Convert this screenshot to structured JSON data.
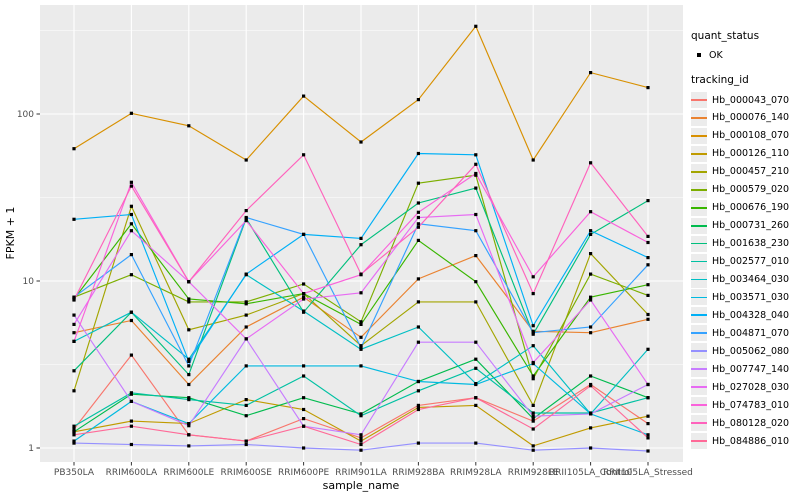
{
  "figure": {
    "bg": "#FFFFFF",
    "panel_bg": "#EBEBEB",
    "grid_color": "#FFFFFF",
    "tick_color": "#333333",
    "tick_label_color": "#4D4D4D",
    "point_color": "#000000"
  },
  "chart_data": {
    "type": "line",
    "title": "",
    "xlabel": "sample_name",
    "ylabel": "FPKM + 1",
    "y_scale": "log10",
    "y_ticks": [
      1,
      10,
      100
    ],
    "y_minor_ticks": [
      3.162,
      31.62,
      316.2
    ],
    "ylim": [
      0.74,
      450
    ],
    "grid": true,
    "legend_position": "right",
    "point_shape": "filled-square",
    "categories": [
      "PB350LA",
      "RRIM600LA",
      "RRIM600LE",
      "RRIM600SE",
      "RRIM600PE",
      "RRIM901LA",
      "RRIM928BA",
      "RRIM928LA",
      "RRIM928LE",
      "RRII105LA_Control",
      "RRII105LA_Stressed"
    ],
    "series": [
      {
        "name": "Hb_000043_070",
        "color": "#F8766D",
        "values": [
          1.3,
          3.6,
          1.2,
          1.1,
          1.5,
          1.15,
          1.8,
          2.0,
          1.45,
          2.4,
          1.4
        ]
      },
      {
        "name": "Hb_000076_140",
        "color": "#EA8331",
        "values": [
          4.9,
          5.8,
          2.4,
          5.3,
          8.0,
          4.6,
          10.3,
          14.2,
          5.0,
          4.9,
          5.9
        ]
      },
      {
        "name": "Hb_000108_070",
        "color": "#D89000",
        "values": [
          62,
          101,
          85,
          53,
          128,
          68,
          122,
          335,
          53,
          177,
          144
        ]
      },
      {
        "name": "Hb_000126_110",
        "color": "#C09B00",
        "values": [
          1.25,
          1.45,
          1.4,
          1.95,
          1.7,
          1.1,
          1.75,
          1.8,
          1.03,
          1.32,
          1.55
        ]
      },
      {
        "name": "Hb_000457_210",
        "color": "#A3A500",
        "values": [
          2.2,
          28,
          5.1,
          6.25,
          8.4,
          4.1,
          7.5,
          7.5,
          1.8,
          14.6,
          6.3
        ]
      },
      {
        "name": "Hb_000579_020",
        "color": "#7CAE00",
        "values": [
          8.0,
          10.9,
          7.5,
          7.5,
          9.6,
          5.7,
          38.5,
          43,
          2.6,
          11,
          8.2
        ]
      },
      {
        "name": "Hb_000676_190",
        "color": "#39B600",
        "values": [
          7.8,
          22,
          7.8,
          7.3,
          8.4,
          5.5,
          17.5,
          9.9,
          2.7,
          8.0,
          9.5
        ]
      },
      {
        "name": "Hb_000731_260",
        "color": "#00BB4E",
        "values": [
          1.25,
          2.1,
          2.0,
          1.56,
          2.0,
          1.6,
          2.5,
          3.4,
          1.5,
          2.7,
          2.0
        ]
      },
      {
        "name": "Hb_001638_230",
        "color": "#00BF7D",
        "values": [
          2.9,
          6.5,
          2.75,
          23.7,
          6.5,
          16.5,
          29.3,
          36,
          4.8,
          19,
          30.3
        ]
      },
      {
        "name": "Hb_002577_010",
        "color": "#00C1A3",
        "values": [
          1.35,
          2.14,
          1.95,
          1.8,
          2.7,
          1.56,
          2.2,
          3.0,
          1.62,
          1.62,
          2.0
        ]
      },
      {
        "name": "Hb_003464_030",
        "color": "#00BFC4",
        "values": [
          4.35,
          6.5,
          3.4,
          10.9,
          6.6,
          3.9,
          5.3,
          2.43,
          4.1,
          1.6,
          3.9
        ]
      },
      {
        "name": "Hb_003571_030",
        "color": "#00BAE0",
        "values": [
          1.1,
          1.9,
          1.4,
          3.1,
          3.1,
          3.1,
          2.5,
          2.4,
          3.2,
          1.6,
          1.2
        ]
      },
      {
        "name": "Hb_004328_040",
        "color": "#00B0F6",
        "values": [
          23.4,
          25,
          3.3,
          11,
          19,
          18,
          58,
          57,
          5.4,
          20,
          13.8
        ]
      },
      {
        "name": "Hb_004871_070",
        "color": "#35A2FF",
        "values": [
          8.0,
          14.4,
          3.1,
          24,
          19,
          4.0,
          22,
          20,
          4.9,
          5.3,
          12.5
        ]
      },
      {
        "name": "Hb_005062_080",
        "color": "#9590FF",
        "values": [
          1.07,
          1.05,
          1.03,
          1.05,
          1.0,
          0.97,
          1.07,
          1.07,
          0.97,
          1.0,
          0.96
        ]
      },
      {
        "name": "Hb_007747_140",
        "color": "#C77CFF",
        "values": [
          6.25,
          1.9,
          1.36,
          4.5,
          1.35,
          1.2,
          4.3,
          4.3,
          1.55,
          1.6,
          2.4
        ]
      },
      {
        "name": "Hb_027028_030",
        "color": "#E76BF3",
        "values": [
          5.5,
          20,
          9.9,
          4.5,
          7.8,
          8.5,
          24,
          25,
          3.25,
          7.7,
          2.4
        ]
      },
      {
        "name": "Hb_074783_010",
        "color": "#FA62DB",
        "values": [
          4.35,
          39,
          9.9,
          23,
          8.4,
          10.9,
          25.8,
          44,
          10.6,
          26,
          17
        ]
      },
      {
        "name": "Hb_080128_020",
        "color": "#FF62BC",
        "values": [
          7.7,
          37,
          9.9,
          26.4,
          57,
          11,
          21,
          50,
          8.4,
          51,
          18.5
        ]
      },
      {
        "name": "Hb_084886_010",
        "color": "#FF6A98",
        "values": [
          1.2,
          1.35,
          1.2,
          1.1,
          1.35,
          1.05,
          1.7,
          2.0,
          1.3,
          2.36,
          1.15
        ]
      }
    ],
    "legend": {
      "quant_title": "quant_status",
      "quant_items": [
        {
          "label": "OK"
        }
      ],
      "tracking_title": "tracking_id"
    }
  }
}
